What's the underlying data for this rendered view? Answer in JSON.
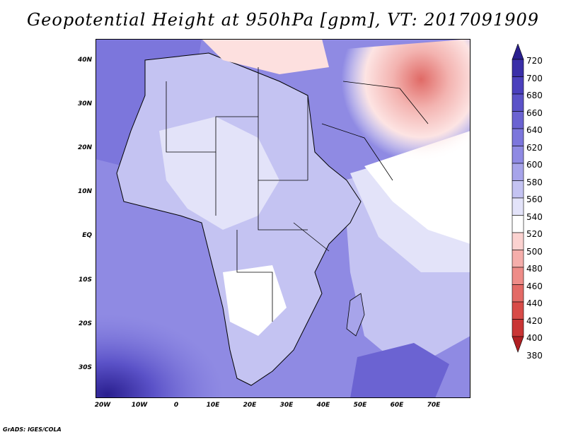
{
  "title": "Geopotential Height at 950hPa [gpm], VT: 2017091909",
  "footer": "GrADS: IGES/COLA",
  "lat_labels": [
    "40N",
    "30N",
    "20N",
    "10N",
    "EQ",
    "10S",
    "20S",
    "30S"
  ],
  "lon_labels": [
    "20W",
    "10W",
    "0",
    "10E",
    "20E",
    "30E",
    "40E",
    "50E",
    "60E",
    "70E"
  ],
  "colorbar": {
    "levels": [
      "720",
      "700",
      "680",
      "660",
      "640",
      "620",
      "600",
      "580",
      "560",
      "540",
      "520",
      "500",
      "480",
      "460",
      "440",
      "420",
      "400",
      "380"
    ],
    "colors": [
      "#2a1f8f",
      "#3a2fa8",
      "#4b40bd",
      "#5b52c8",
      "#6b63d2",
      "#7c76dc",
      "#8f8ae3",
      "#a7a4ea",
      "#c4c3f2",
      "#e3e3f9",
      "#ffffff",
      "#fbd2d0",
      "#f5aeab",
      "#ee8c88",
      "#e36a66",
      "#d84b48",
      "#c93535",
      "#b01f22"
    ]
  },
  "map": {
    "region": "Africa and Middle East",
    "variable": "geopotential height",
    "level_hpa": 950
  }
}
